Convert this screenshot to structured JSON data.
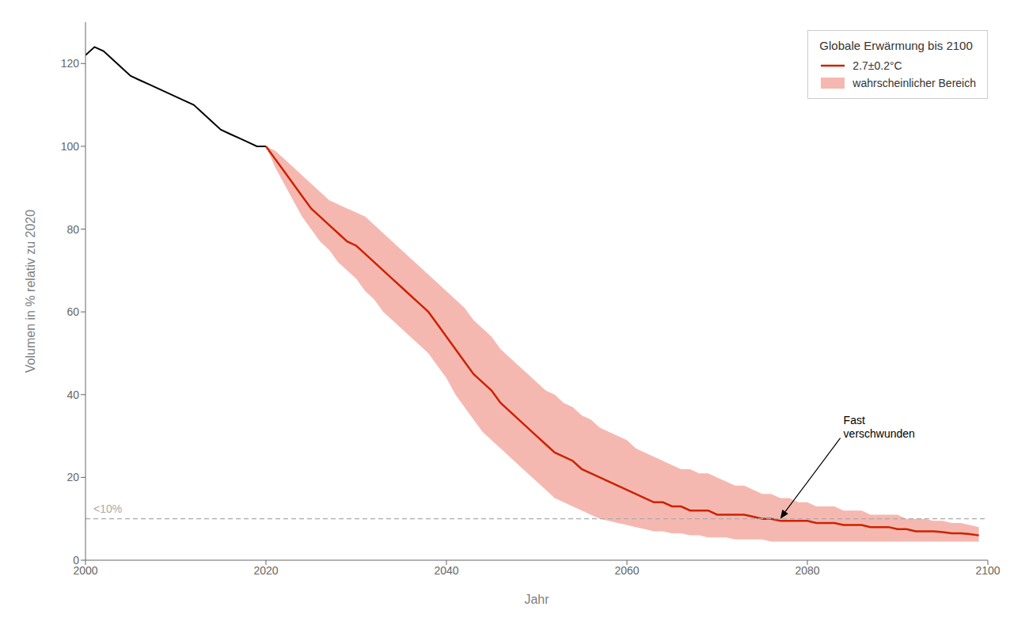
{
  "chart_data": {
    "type": "line",
    "xlabel": "Jahr",
    "ylabel": "Volumen in % relativ zu 2020",
    "legend_title": "Globale Erwärmung bis 2100",
    "legend": "upper right",
    "grid": false,
    "xlim": [
      2000,
      2100
    ],
    "ylim": [
      0,
      130
    ],
    "xticks": [
      2000,
      2020,
      2040,
      2060,
      2080,
      2100
    ],
    "yticks": [
      0,
      20,
      40,
      60,
      80,
      100,
      120
    ],
    "series": [
      {
        "type": "line",
        "color": "#000000",
        "x": [
          2000,
          2001,
          2002,
          2003,
          2004,
          2005,
          2006,
          2007,
          2008,
          2009,
          2010,
          2011,
          2012,
          2013,
          2014,
          2015,
          2016,
          2017,
          2018,
          2019,
          2020
        ],
        "values": [
          122,
          124,
          123,
          121,
          119,
          117,
          116,
          115,
          114,
          113,
          112,
          111,
          110,
          108,
          106,
          104,
          103,
          102,
          101,
          100,
          100
        ]
      },
      {
        "name": "2.7±0.2°C",
        "type": "line",
        "color": "#cc2200",
        "x": [
          2020,
          2021,
          2022,
          2023,
          2024,
          2025,
          2026,
          2027,
          2028,
          2029,
          2030,
          2031,
          2032,
          2033,
          2034,
          2035,
          2036,
          2037,
          2038,
          2039,
          2040,
          2041,
          2042,
          2043,
          2044,
          2045,
          2046,
          2047,
          2048,
          2049,
          2050,
          2051,
          2052,
          2053,
          2054,
          2055,
          2056,
          2057,
          2058,
          2059,
          2060,
          2061,
          2062,
          2063,
          2064,
          2065,
          2066,
          2067,
          2068,
          2069,
          2070,
          2071,
          2072,
          2073,
          2074,
          2075,
          2076,
          2077,
          2078,
          2079,
          2080,
          2081,
          2082,
          2083,
          2084,
          2085,
          2086,
          2087,
          2088,
          2089,
          2090,
          2091,
          2092,
          2093,
          2094,
          2095,
          2096,
          2097,
          2098,
          2099
        ],
        "values": [
          100,
          97,
          94,
          91,
          88,
          85,
          83,
          81,
          79,
          77,
          76,
          74,
          72,
          70,
          68,
          66,
          64,
          62,
          60,
          57,
          54,
          51,
          48,
          45,
          43,
          41,
          38,
          36,
          34,
          32,
          30,
          28,
          26,
          25,
          24,
          22,
          21,
          20,
          19,
          18,
          17,
          16,
          15,
          14,
          14,
          13,
          13,
          12,
          12,
          12,
          11,
          11,
          11,
          11,
          10.5,
          10,
          10,
          9.5,
          9.5,
          9.5,
          9.5,
          9,
          9,
          9,
          8.5,
          8.5,
          8.5,
          8,
          8,
          8,
          7.5,
          7.5,
          7,
          7,
          7,
          6.8,
          6.5,
          6.5,
          6.3,
          6
        ]
      },
      {
        "name": "wahrscheinlicher Bereich",
        "type": "band",
        "color": "#f5b8b0",
        "x": [
          2020,
          2021,
          2022,
          2023,
          2024,
          2025,
          2026,
          2027,
          2028,
          2029,
          2030,
          2031,
          2032,
          2033,
          2034,
          2035,
          2036,
          2037,
          2038,
          2039,
          2040,
          2041,
          2042,
          2043,
          2044,
          2045,
          2046,
          2047,
          2048,
          2049,
          2050,
          2051,
          2052,
          2053,
          2054,
          2055,
          2056,
          2057,
          2058,
          2059,
          2060,
          2061,
          2062,
          2063,
          2064,
          2065,
          2066,
          2067,
          2068,
          2069,
          2070,
          2071,
          2072,
          2073,
          2074,
          2075,
          2076,
          2077,
          2078,
          2079,
          2080,
          2081,
          2082,
          2083,
          2084,
          2085,
          2086,
          2087,
          2088,
          2089,
          2090,
          2091,
          2092,
          2093,
          2094,
          2095,
          2096,
          2097,
          2098,
          2099
        ],
        "lower": [
          100,
          95,
          91,
          87,
          83,
          80,
          77,
          75,
          72,
          70,
          68,
          65,
          63,
          60,
          58,
          56,
          54,
          52,
          50,
          47,
          44,
          40,
          37,
          34,
          31,
          29,
          27,
          25,
          23,
          21,
          19,
          17,
          15,
          14,
          13,
          12,
          11,
          10,
          9.5,
          9,
          8.5,
          8,
          7.5,
          7,
          7,
          6.5,
          6.5,
          6,
          6,
          5.5,
          5.5,
          5.5,
          5,
          5,
          5,
          5,
          4.5,
          4.5,
          4.5,
          4.5,
          4.5,
          4.5,
          4.5,
          4.5,
          4.5,
          4.5,
          4.5,
          4.5,
          4.5,
          4.5,
          4.5,
          4.5,
          4.5,
          4.5,
          4.5,
          4.5,
          4.5,
          4.5,
          4.5,
          4.5
        ],
        "upper": [
          100,
          99,
          97,
          95,
          93,
          91,
          89,
          87,
          86,
          85,
          84,
          83,
          81,
          79,
          77,
          75,
          73,
          71,
          69,
          67,
          65,
          63,
          61,
          58,
          56,
          54,
          51,
          49,
          47,
          45,
          43,
          41,
          40,
          38,
          37,
          35,
          34,
          32,
          31,
          30,
          29,
          27,
          26,
          25,
          24,
          23,
          22,
          22,
          21,
          21,
          20,
          19,
          18,
          18,
          17,
          16,
          16,
          15,
          15,
          14,
          14,
          13,
          13,
          13,
          12,
          12,
          12,
          11,
          11,
          11,
          11,
          10,
          10,
          10,
          9.5,
          9.5,
          9,
          9,
          8.5,
          8
        ]
      }
    ],
    "annotations": [
      {
        "type": "hline",
        "y": 10,
        "label": "<10%",
        "color": "#aaaaaa",
        "line_style": "dashed"
      },
      {
        "type": "arrow",
        "text": "Fast\nverschwunden",
        "x": 2084,
        "y": 32,
        "target_x": 2077,
        "target_y": 10
      }
    ]
  }
}
